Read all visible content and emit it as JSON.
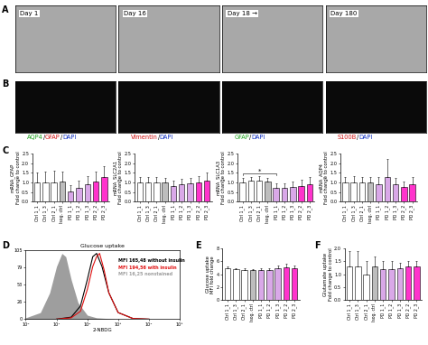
{
  "panel_labels": [
    "A",
    "B",
    "C",
    "D",
    "E",
    "F"
  ],
  "images_A": [
    {
      "label": "Day 1"
    },
    {
      "label": "Day 16"
    },
    {
      "label": "Day 18 →"
    },
    {
      "label": "Day 180"
    }
  ],
  "images_B": [
    {
      "label_parts": [
        {
          "text": "AQP4",
          "color": "#1aa01a"
        },
        {
          "text": "/",
          "color": "#000000"
        },
        {
          "text": "GFAP",
          "color": "#d01010"
        },
        {
          "text": "/",
          "color": "#000000"
        },
        {
          "text": "DAPI",
          "color": "#1030c0"
        }
      ]
    },
    {
      "label_parts": [
        {
          "text": "Vimentin",
          "color": "#d01010"
        },
        {
          "text": "/",
          "color": "#000000"
        },
        {
          "text": "DAPI",
          "color": "#1030c0"
        }
      ]
    },
    {
      "label_parts": [
        {
          "text": "GFAP",
          "color": "#1aa01a"
        },
        {
          "text": "/",
          "color": "#000000"
        },
        {
          "text": "DAPI",
          "color": "#1030c0"
        }
      ]
    },
    {
      "label_parts": [
        {
          "text": "S100B",
          "color": "#d01010"
        },
        {
          "text": "/",
          "color": "#000000"
        },
        {
          "text": "DAPI",
          "color": "#1030c0"
        }
      ]
    }
  ],
  "chart_data": [
    {
      "type": "bar",
      "ylabel": "mRNA_GFAP\nFold change to control",
      "categories": [
        "Ctrl 1_1",
        "Ctrl 1_3",
        "Ctrl 2_1",
        "Isog. ctrl",
        "PD 1_1",
        "PD 1_2",
        "PD 1_3",
        "PD 2_2",
        "PD 2_3"
      ],
      "values": [
        1.0,
        1.0,
        1.0,
        1.05,
        0.55,
        0.7,
        0.9,
        1.05,
        1.3
      ],
      "errors": [
        0.5,
        0.55,
        0.6,
        0.5,
        0.3,
        0.4,
        0.45,
        0.5,
        0.55
      ],
      "colors": [
        "#ffffff",
        "#ffffff",
        "#ffffff",
        "#bdbdbd",
        "#d9a8e8",
        "#d9a8e8",
        "#d9a8e8",
        "#ff33cc",
        "#ff33cc"
      ],
      "ylim": [
        0,
        2.5
      ],
      "yticks": [
        {
          "value": 0,
          "label": "0.0"
        },
        {
          "value": 0.5,
          "label": "0.5"
        },
        {
          "value": 1,
          "label": "1.0"
        },
        {
          "value": 1.5,
          "label": "1.5"
        },
        {
          "value": 2,
          "label": "2.0"
        },
        {
          "value": 2.5,
          "label": "2.5"
        }
      ]
    },
    {
      "type": "bar",
      "ylabel": "mRNA_SLC2A1\nFold change to control",
      "categories": [
        "Ctrl 1_1",
        "Ctrl 1_3",
        "Ctrl 2_1",
        "Isog. ctrl",
        "PD 1_1",
        "PD 1_2",
        "PD 1_3",
        "PD 2_2",
        "PD 2_3"
      ],
      "values": [
        1.0,
        1.0,
        1.0,
        1.0,
        0.8,
        0.9,
        0.95,
        1.0,
        1.1
      ],
      "errors": [
        0.3,
        0.3,
        0.3,
        0.25,
        0.3,
        0.3,
        0.3,
        0.35,
        0.4
      ],
      "colors": [
        "#ffffff",
        "#ffffff",
        "#ffffff",
        "#bdbdbd",
        "#d9a8e8",
        "#d9a8e8",
        "#d9a8e8",
        "#ff33cc",
        "#ff33cc"
      ],
      "ylim": [
        0,
        2.5
      ],
      "yticks": [
        {
          "value": 0,
          "label": "0.0"
        },
        {
          "value": 0.5,
          "label": "0.5"
        },
        {
          "value": 1,
          "label": "1.0"
        },
        {
          "value": 1.5,
          "label": "1.5"
        },
        {
          "value": 2,
          "label": "2.0"
        },
        {
          "value": 2.5,
          "label": "2.5"
        }
      ]
    },
    {
      "type": "bar",
      "ylabel": "mRNA_SLC1A3\nFold change to control",
      "categories": [
        "Ctrl 1_1",
        "Ctrl 1_3",
        "Ctrl 2_1",
        "Isog. ctrl",
        "PD 1_1",
        "PD 1_2",
        "PD 1_3",
        "PD 2_2",
        "PD 2_3"
      ],
      "values": [
        1.0,
        1.1,
        1.1,
        1.05,
        0.7,
        0.7,
        0.75,
        0.8,
        0.9
      ],
      "errors": [
        0.25,
        0.2,
        0.25,
        0.2,
        0.25,
        0.25,
        0.3,
        0.35,
        0.4
      ],
      "colors": [
        "#ffffff",
        "#ffffff",
        "#ffffff",
        "#bdbdbd",
        "#d9a8e8",
        "#d9a8e8",
        "#d9a8e8",
        "#ff33cc",
        "#ff33cc"
      ],
      "ylim": [
        0,
        2.5
      ],
      "yticks": [
        {
          "value": 0,
          "label": "0.0"
        },
        {
          "value": 0.5,
          "label": "0.5"
        },
        {
          "value": 1,
          "label": "1.0"
        },
        {
          "value": 1.5,
          "label": "1.5"
        },
        {
          "value": 2,
          "label": "2.0"
        },
        {
          "value": 2.5,
          "label": "2.5"
        }
      ],
      "annotations": [
        {
          "text": "*",
          "between": [
            "Ctrl 1_1",
            "PD 1_1"
          ]
        }
      ]
    },
    {
      "type": "bar",
      "ylabel": "mRNA_AQP4\nFold change to control",
      "categories": [
        "Ctrl 1_1",
        "Ctrl 1_3",
        "Ctrl 2_1",
        "Isog. ctrl",
        "PD 1_1",
        "PD 1_2",
        "PD 1_3",
        "PD 2_2",
        "PD 2_3"
      ],
      "values": [
        1.0,
        1.0,
        1.0,
        1.0,
        0.9,
        1.3,
        0.9,
        0.75,
        0.9
      ],
      "errors": [
        0.3,
        0.35,
        0.3,
        0.3,
        0.4,
        0.9,
        0.35,
        0.3,
        0.4
      ],
      "colors": [
        "#ffffff",
        "#ffffff",
        "#ffffff",
        "#bdbdbd",
        "#d9a8e8",
        "#d9a8e8",
        "#d9a8e8",
        "#ff33cc",
        "#ff33cc"
      ],
      "ylim": [
        0,
        2.5
      ],
      "yticks": [
        {
          "value": 0,
          "label": "0.0"
        },
        {
          "value": 0.5,
          "label": "0.5"
        },
        {
          "value": 1,
          "label": "1.0"
        },
        {
          "value": 1.5,
          "label": "1.5"
        },
        {
          "value": 2,
          "label": "2.0"
        },
        {
          "value": 2.5,
          "label": "2.5"
        }
      ]
    },
    {
      "type": "line",
      "title": "Glucose uptake",
      "xlabel": "2-NBDG",
      "log": "x",
      "xlim": [
        1,
        100000
      ],
      "xticks": [
        {
          "value": 1,
          "label": "10⁰"
        },
        {
          "value": 10,
          "label": "10¹"
        },
        {
          "value": 100,
          "label": "10²"
        },
        {
          "value": 1000,
          "label": "10³"
        },
        {
          "value": 10000,
          "label": "10⁴"
        },
        {
          "value": 100000,
          "label": "10⁵"
        }
      ],
      "ylim": [
        0,
        105
      ],
      "yticks": [
        0,
        26,
        53,
        79,
        105
      ],
      "series": [
        {
          "name": "MFI 16,25 nonstained",
          "type": "area",
          "color": "#9e9e9e",
          "x": [
            1,
            3,
            6,
            10,
            15,
            20,
            30,
            50,
            100,
            200,
            1000,
            100000
          ],
          "values": [
            2,
            10,
            40,
            80,
            100,
            95,
            60,
            25,
            6,
            2,
            0,
            0
          ]
        },
        {
          "name": "MFI 165,48 without insulin",
          "type": "line",
          "color": "#000000",
          "x": [
            10,
            30,
            60,
            100,
            150,
            200,
            300,
            500,
            1000,
            3000,
            10000
          ],
          "values": [
            0,
            3,
            20,
            60,
            95,
            100,
            80,
            40,
            10,
            1,
            0
          ]
        },
        {
          "name": "MFI 194,56 with insulin",
          "type": "line",
          "color": "#e01010",
          "x": [
            10,
            30,
            60,
            100,
            150,
            200,
            250,
            350,
            500,
            1000,
            3000,
            10000
          ],
          "values": [
            0,
            2,
            12,
            45,
            80,
            95,
            100,
            75,
            40,
            10,
            1,
            0
          ]
        }
      ]
    },
    {
      "type": "bar",
      "ylabel": "Glucose uptake\nMFI fold change",
      "categories": [
        "Ctrl 1_1",
        "Ctrl 1_3",
        "Ctrl 2_1",
        "Isog. ctrl",
        "PD 1_1",
        "PD 1_2",
        "PD 1_3",
        "PD 2_2",
        "PD 2_3"
      ],
      "values": [
        5.0,
        4.8,
        4.7,
        4.6,
        4.6,
        4.7,
        4.9,
        5.1,
        4.9
      ],
      "errors": [
        0.2,
        0.2,
        0.3,
        0.2,
        0.4,
        0.3,
        0.5,
        0.6,
        0.5
      ],
      "colors": [
        "#ffffff",
        "#ffffff",
        "#ffffff",
        "#bdbdbd",
        "#d9a8e8",
        "#d9a8e8",
        "#d9a8e8",
        "#ff33cc",
        "#ff33cc"
      ],
      "ylim": [
        0,
        8
      ],
      "yticks": [
        0,
        2,
        4,
        6,
        8
      ]
    },
    {
      "type": "bar",
      "ylabel": "Glutamate uptake\nFold change to control",
      "categories": [
        "Ctrl 1_1",
        "Ctrl 1_3",
        "Ctrl 2_1",
        "Isog. ctrl",
        "PD 1_1",
        "PD 1_2",
        "PD 1_3",
        "PD 2_2",
        "PD 2_3"
      ],
      "values": [
        1.3,
        1.3,
        1.0,
        1.3,
        1.2,
        1.2,
        1.25,
        1.3,
        1.3
      ],
      "errors": [
        0.6,
        0.6,
        0.5,
        0.4,
        0.3,
        0.3,
        0.2,
        0.2,
        0.2
      ],
      "colors": [
        "#ffffff",
        "#ffffff",
        "#ffffff",
        "#bdbdbd",
        "#d9a8e8",
        "#d9a8e8",
        "#d9a8e8",
        "#ff33cc",
        "#ff33cc"
      ],
      "ylim": [
        0,
        2
      ],
      "yticks": [
        {
          "value": 0,
          "label": "0.0"
        },
        {
          "value": 0.5,
          "label": "0.5"
        },
        {
          "value": 1,
          "label": "1.0"
        },
        {
          "value": 1.5,
          "label": "1.5"
        },
        {
          "value": 2,
          "label": "2.0"
        }
      ]
    }
  ]
}
